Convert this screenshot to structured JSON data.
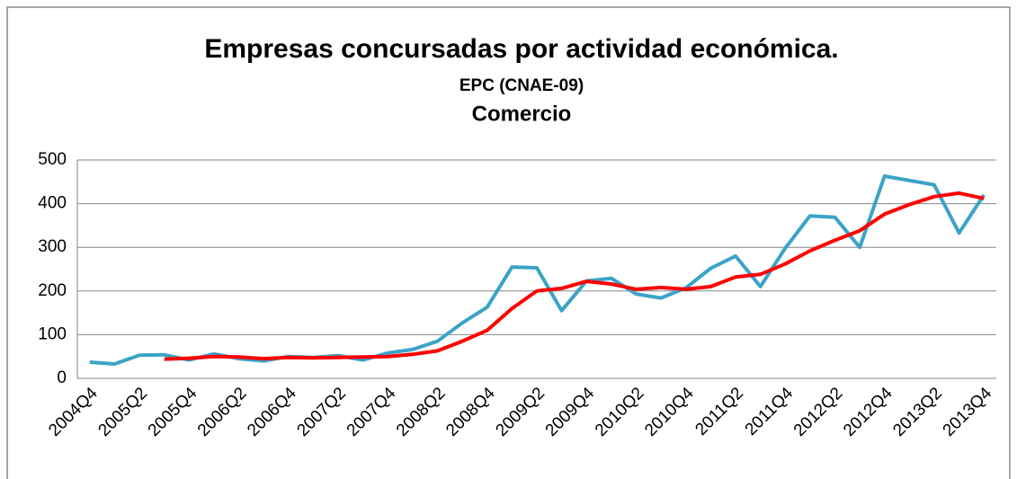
{
  "chart_data": {
    "type": "line",
    "title": "Empresas concursadas por actividad económica.",
    "subtitle": "EPC (CNAE-09)",
    "subtitle2": "Comercio",
    "categories": [
      "2004Q4",
      null,
      "2005Q2",
      null,
      "2005Q4",
      null,
      "2006Q2",
      null,
      "2006Q4",
      null,
      "2007Q2",
      null,
      "2007Q4",
      null,
      "2008Q2",
      null,
      "2008Q4",
      null,
      "2009Q2",
      null,
      "2009Q4",
      null,
      "2010Q2",
      null,
      "2010Q4",
      null,
      "2011Q2",
      null,
      "2011Q4",
      null,
      "2012Q2",
      null,
      "2012Q4",
      null,
      "2013Q2",
      null,
      "2013Q4"
    ],
    "series": [
      {
        "color": "#3ba3c8",
        "values": [
          37,
          33,
          53,
          54,
          42,
          56,
          45,
          40,
          50,
          48,
          52,
          42,
          58,
          66,
          85,
          127,
          163,
          255,
          253,
          155,
          223,
          229,
          193,
          184,
          207,
          252,
          280,
          210,
          298,
          372,
          369,
          300,
          463,
          453,
          443,
          333,
          420
        ]
      },
      {
        "color": "#ff0000",
        "values": [
          null,
          null,
          null,
          44,
          46,
          50,
          49,
          45,
          48,
          47,
          48,
          49,
          50,
          55,
          63,
          85,
          110,
          160,
          200,
          206,
          222,
          216,
          204,
          208,
          204,
          210,
          232,
          238,
          262,
          292,
          316,
          338,
          376,
          398,
          416,
          424,
          412
        ]
      }
    ],
    "ylim": [
      0,
      500
    ],
    "yticks": [
      0,
      100,
      200,
      300,
      400,
      500
    ],
    "grid": true
  }
}
